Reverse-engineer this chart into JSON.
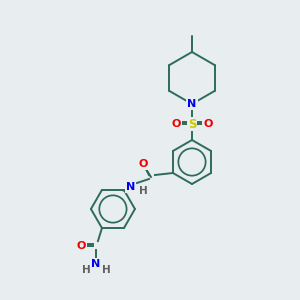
{
  "bg_color": "#e8edf0",
  "bond_color": "#2d6b5a",
  "atom_colors": {
    "N": "#0000ee",
    "O": "#ee0000",
    "S": "#cccc00",
    "H": "#606060",
    "C": "#2d6b5a"
  },
  "bond_width": 1.4,
  "figsize": [
    3.0,
    3.0
  ],
  "dpi": 100
}
